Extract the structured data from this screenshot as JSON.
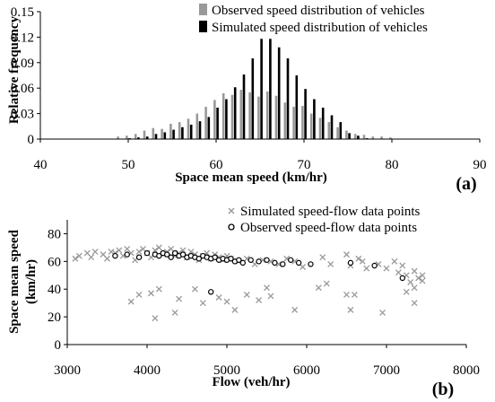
{
  "chart_data": [
    {
      "type": "bar",
      "panel_label": "(a)",
      "xlabel": "Space mean speed (km/hr)",
      "ylabel": "Relative frequency",
      "xlim": [
        40,
        90
      ],
      "ylim": [
        0,
        0.15
      ],
      "x_ticks": [
        "40",
        "50",
        "60",
        "70",
        "80",
        "90"
      ],
      "y_ticks": [
        "0",
        "0.03",
        "0.06",
        "0.09",
        "0.12",
        "0.15"
      ],
      "legend_position": "top-right",
      "grid": false,
      "x": [
        49,
        50,
        51,
        52,
        53,
        54,
        55,
        56,
        57,
        58,
        59,
        60,
        61,
        62,
        63,
        64,
        65,
        66,
        67,
        68,
        69,
        70,
        71,
        72,
        73,
        74,
        75,
        76,
        77,
        78,
        79,
        80
      ],
      "series": [
        {
          "name": "Observed speed distribution of vehicles",
          "color": "#999999",
          "values": [
            0.003,
            0.004,
            0.006,
            0.01,
            0.013,
            0.012,
            0.018,
            0.02,
            0.024,
            0.03,
            0.038,
            0.046,
            0.054,
            0.052,
            0.058,
            0.055,
            0.05,
            0.056,
            0.051,
            0.043,
            0.038,
            0.039,
            0.03,
            0.025,
            0.02,
            0.014,
            0.01,
            0.006,
            0.005,
            0.003,
            0.003,
            0.002
          ]
        },
        {
          "name": "Simulated speed distribution of vehicles",
          "color": "#000000",
          "values": [
            0.0,
            0.001,
            0.002,
            0.003,
            0.006,
            0.008,
            0.011,
            0.014,
            0.017,
            0.021,
            0.026,
            0.037,
            0.047,
            0.061,
            0.076,
            0.095,
            0.118,
            0.118,
            0.108,
            0.095,
            0.075,
            0.059,
            0.047,
            0.037,
            0.028,
            0.02,
            0.007,
            0.004,
            0.001,
            0.0,
            0.0,
            0.0
          ]
        }
      ]
    },
    {
      "type": "scatter",
      "panel_label": "(b)",
      "xlabel": "Flow (veh/hr)",
      "ylabel": "Space mean speed (km/hr)",
      "ylabel_lines": [
        "Space mean speed",
        "(km/hr)"
      ],
      "xlim": [
        3000,
        8000
      ],
      "ylim": [
        0,
        90
      ],
      "x_ticks": [
        "3000",
        "4000",
        "5000",
        "6000",
        "7000",
        "8000"
      ],
      "y_ticks": [
        "0",
        "20",
        "40",
        "60",
        "80"
      ],
      "legend_position": "top-right",
      "grid": false,
      "series": [
        {
          "name": "Simulated speed-flow data points",
          "marker": "x",
          "color": "#999999",
          "points": [
            [
              3100,
              62
            ],
            [
              3150,
              64
            ],
            [
              3250,
              66
            ],
            [
              3300,
              63
            ],
            [
              3350,
              67
            ],
            [
              3450,
              65
            ],
            [
              3500,
              62
            ],
            [
              3550,
              67
            ],
            [
              3600,
              66
            ],
            [
              3650,
              68
            ],
            [
              3700,
              64
            ],
            [
              3750,
              69
            ],
            [
              3800,
              66
            ],
            [
              3850,
              61
            ],
            [
              3900,
              67
            ],
            [
              3950,
              69
            ],
            [
              4000,
              66
            ],
            [
              4050,
              63
            ],
            [
              4100,
              68
            ],
            [
              4150,
              70
            ],
            [
              4200,
              65
            ],
            [
              4250,
              67
            ],
            [
              4300,
              69
            ],
            [
              4350,
              64
            ],
            [
              4400,
              66
            ],
            [
              4450,
              68
            ],
            [
              4500,
              63
            ],
            [
              4550,
              67
            ],
            [
              4600,
              65
            ],
            [
              4650,
              61
            ],
            [
              4700,
              64
            ],
            [
              4750,
              66
            ],
            [
              4800,
              62
            ],
            [
              4850,
              65
            ],
            [
              4900,
              63
            ],
            [
              4950,
              61
            ],
            [
              5000,
              64
            ],
            [
              5050,
              62
            ],
            [
              5150,
              60
            ],
            [
              5250,
              62
            ],
            [
              5350,
              58
            ],
            [
              5450,
              61
            ],
            [
              5550,
              60
            ],
            [
              5650,
              58
            ],
            [
              5750,
              62
            ],
            [
              5850,
              60
            ],
            [
              5950,
              56
            ],
            [
              6200,
              63
            ],
            [
              6300,
              58
            ],
            [
              6500,
              65
            ],
            [
              6550,
              57
            ],
            [
              6650,
              62
            ],
            [
              6700,
              60
            ],
            [
              6750,
              55
            ],
            [
              6900,
              58
            ],
            [
              7000,
              55
            ],
            [
              7100,
              60
            ],
            [
              7150,
              52
            ],
            [
              7200,
              57
            ],
            [
              7250,
              50
            ],
            [
              7300,
              45
            ],
            [
              7350,
              53
            ],
            [
              7400,
              48
            ],
            [
              7450,
              46
            ],
            [
              7450,
              50
            ],
            [
              7350,
              41
            ],
            [
              3800,
              31
            ],
            [
              3900,
              36
            ],
            [
              4050,
              37
            ],
            [
              4100,
              19
            ],
            [
              4150,
              40
            ],
            [
              4350,
              23
            ],
            [
              4400,
              33
            ],
            [
              4600,
              40
            ],
            [
              4700,
              30
            ],
            [
              4900,
              34
            ],
            [
              5000,
              31
            ],
            [
              5100,
              25
            ],
            [
              5250,
              36
            ],
            [
              5400,
              32
            ],
            [
              5500,
              41
            ],
            [
              5550,
              35
            ],
            [
              5850,
              25
            ],
            [
              6150,
              41
            ],
            [
              6250,
              44
            ],
            [
              6500,
              36
            ],
            [
              6550,
              25
            ],
            [
              6600,
              36
            ],
            [
              6950,
              23
            ],
            [
              7250,
              38
            ],
            [
              7350,
              30
            ]
          ]
        },
        {
          "name": "Observed speed-flow data points",
          "marker": "o",
          "color": "#000000",
          "points": [
            [
              3600,
              64
            ],
            [
              3750,
              65
            ],
            [
              3900,
              63
            ],
            [
              4000,
              66
            ],
            [
              4100,
              65
            ],
            [
              4150,
              64
            ],
            [
              4200,
              66
            ],
            [
              4250,
              65
            ],
            [
              4300,
              63
            ],
            [
              4350,
              66
            ],
            [
              4400,
              64
            ],
            [
              4450,
              65
            ],
            [
              4500,
              63
            ],
            [
              4550,
              64
            ],
            [
              4600,
              63
            ],
            [
              4650,
              62
            ],
            [
              4700,
              64
            ],
            [
              4750,
              63
            ],
            [
              4800,
              62
            ],
            [
              4850,
              63
            ],
            [
              4900,
              61
            ],
            [
              4950,
              62
            ],
            [
              5000,
              61
            ],
            [
              5050,
              62
            ],
            [
              5100,
              60
            ],
            [
              5150,
              61
            ],
            [
              5200,
              59
            ],
            [
              5300,
              61
            ],
            [
              5400,
              60
            ],
            [
              5500,
              61
            ],
            [
              5600,
              59
            ],
            [
              5700,
              58
            ],
            [
              5800,
              61
            ],
            [
              5900,
              59
            ],
            [
              6050,
              58
            ],
            [
              6550,
              59
            ],
            [
              6850,
              57
            ],
            [
              4800,
              38
            ],
            [
              7200,
              48
            ]
          ]
        }
      ]
    }
  ]
}
